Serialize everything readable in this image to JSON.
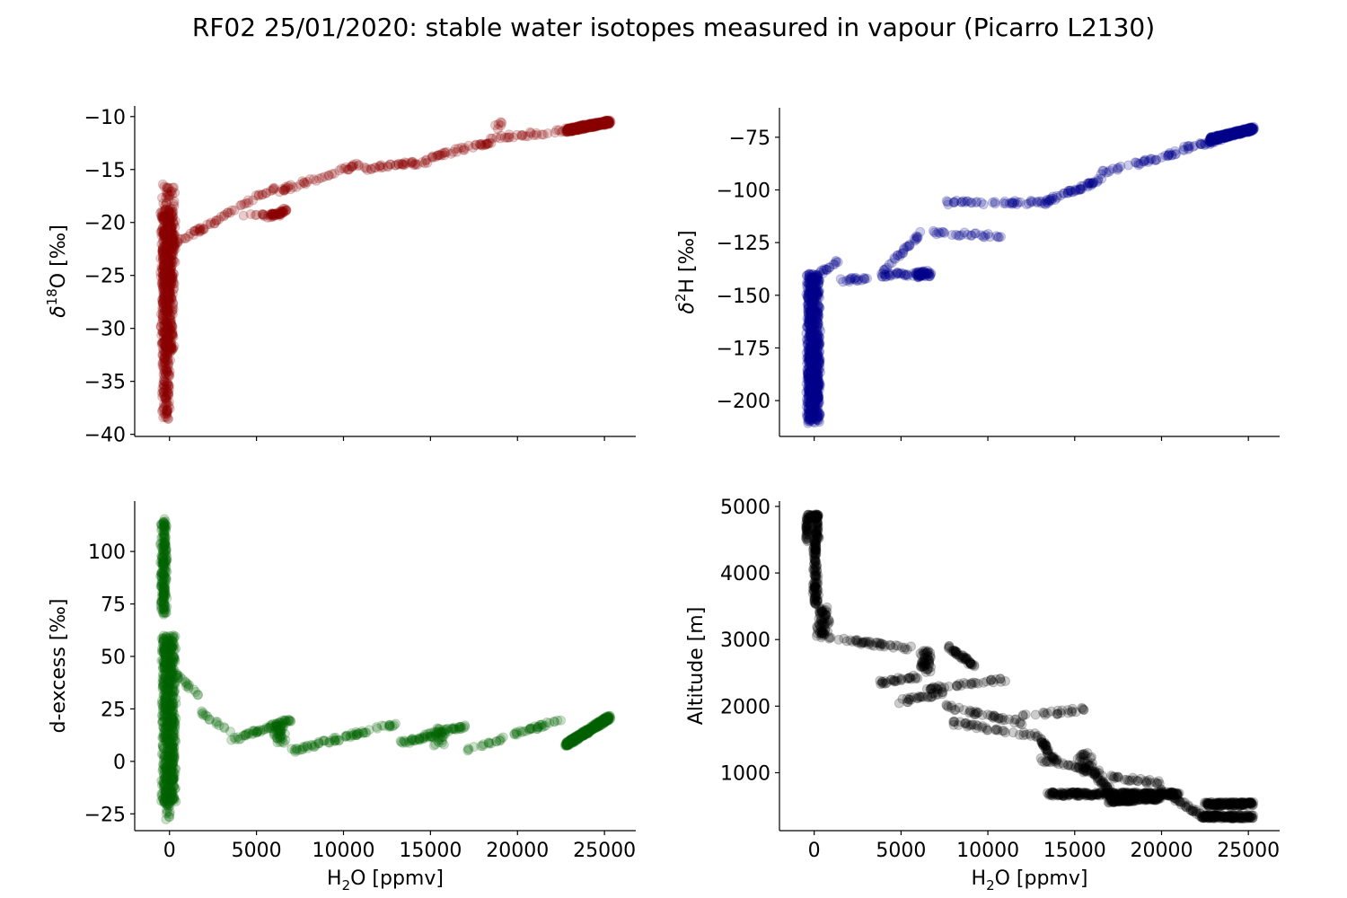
{
  "figure_title": "RF02 25/01/2020: stable water isotopes measured in vapour (Picarro L2130)",
  "chart_data": [
    {
      "id": "d18o",
      "type": "scatter",
      "title": "",
      "xlabel": "H2O [ppmv]",
      "ylabel": "δ18O [‰]",
      "ylabel_parts": {
        "pre": "δ",
        "sup": "18",
        "post": "O [‰]"
      },
      "xlim": [
        -2000,
        26800
      ],
      "ylim": [
        -40.2,
        -9.0
      ],
      "xticks": [
        0,
        5000,
        10000,
        15000,
        20000,
        25000
      ],
      "show_xticklabels": false,
      "yticks": [
        -40,
        -35,
        -30,
        -25,
        -20,
        -15,
        -10
      ],
      "ytick_labels": [
        "−40",
        "−35",
        "−30",
        "−25",
        "−20",
        "−15",
        "−10"
      ],
      "color": "#8b0000",
      "alpha": 0.2,
      "segments": [
        {
          "x": [
            -400,
            0
          ],
          "y": [
            -38.5,
            -32
          ],
          "n": 120
        },
        {
          "x": [
            -450,
            200
          ],
          "y": [
            -32,
            -19
          ],
          "n": 500
        },
        {
          "x": [
            -400,
            300
          ],
          "y": [
            -26,
            -16.5
          ],
          "n": 150
        },
        {
          "x": [
            200,
            2000
          ],
          "y": [
            -22,
            -20.5
          ],
          "n": 25
        },
        {
          "x": [
            2000,
            6200
          ],
          "y": [
            -20.5,
            -16.5
          ],
          "n": 35
        },
        {
          "x": [
            5600,
            6700
          ],
          "y": [
            -19.5,
            -18.8
          ],
          "n": 40
        },
        {
          "x": [
            4200,
            6300
          ],
          "y": [
            -19.3,
            -19.3
          ],
          "n": 15
        },
        {
          "x": [
            6300,
            11000
          ],
          "y": [
            -17,
            -14.5
          ],
          "n": 45
        },
        {
          "x": [
            11000,
            15000
          ],
          "y": [
            -15,
            -14.2
          ],
          "n": 40
        },
        {
          "x": [
            15000,
            18500
          ],
          "y": [
            -13.8,
            -12.4
          ],
          "n": 40
        },
        {
          "x": [
            18500,
            23000
          ],
          "y": [
            -12,
            -11.3
          ],
          "n": 30
        },
        {
          "x": [
            18700,
            19100
          ],
          "y": [
            -11,
            -10.6
          ],
          "n": 6
        },
        {
          "x": [
            22800,
            25300
          ],
          "y": [
            -11.3,
            -10.5
          ],
          "n": 400
        }
      ]
    },
    {
      "id": "d2h",
      "type": "scatter",
      "xlabel": "H2O [ppmv]",
      "ylabel": "δ2H [‰]",
      "ylabel_parts": {
        "pre": "δ",
        "sup": "2",
        "post": "H [‰]"
      },
      "xlim": [
        -2000,
        26800
      ],
      "ylim": [
        -217,
        -61
      ],
      "xticks": [
        0,
        5000,
        10000,
        15000,
        20000,
        25000
      ],
      "show_xticklabels": false,
      "yticks": [
        -200,
        -175,
        -150,
        -125,
        -100,
        -75
      ],
      "ytick_labels": [
        "−200",
        "−175",
        "−150",
        "−125",
        "−100",
        "−75"
      ],
      "color": "#00008b",
      "alpha": 0.2,
      "segments": [
        {
          "x": [
            -400,
            300
          ],
          "y": [
            -210,
            -140
          ],
          "n": 700
        },
        {
          "x": [
            -300,
            200
          ],
          "y": [
            -205,
            -185
          ],
          "n": 100
        },
        {
          "x": [
            300,
            1500
          ],
          "y": [
            -140,
            -133
          ],
          "n": 15
        },
        {
          "x": [
            1500,
            4200
          ],
          "y": [
            -143,
            -141
          ],
          "n": 25
        },
        {
          "x": [
            4200,
            6700
          ],
          "y": [
            -140,
            -140
          ],
          "n": 30
        },
        {
          "x": [
            5800,
            6700
          ],
          "y": [
            -141,
            -139
          ],
          "n": 40
        },
        {
          "x": [
            3800,
            6000
          ],
          "y": [
            -140,
            -122
          ],
          "n": 30
        },
        {
          "x": [
            6000,
            11000
          ],
          "y": [
            -120,
            -122
          ],
          "n": 30
        },
        {
          "x": [
            7500,
            13500
          ],
          "y": [
            -106,
            -106
          ],
          "n": 50
        },
        {
          "x": [
            13500,
            16500
          ],
          "y": [
            -105,
            -95
          ],
          "n": 50
        },
        {
          "x": [
            16500,
            21000
          ],
          "y": [
            -92,
            -82
          ],
          "n": 40
        },
        {
          "x": [
            21000,
            23500
          ],
          "y": [
            -81,
            -76
          ],
          "n": 30
        },
        {
          "x": [
            22800,
            25300
          ],
          "y": [
            -76,
            -71
          ],
          "n": 400
        }
      ]
    },
    {
      "id": "dexcess",
      "type": "scatter",
      "xlabel": "H2O [ppmv]",
      "ylabel": "d-excess [‰]",
      "xlim": [
        -2000,
        26800
      ],
      "ylim": [
        -33,
        124
      ],
      "xticks": [
        0,
        5000,
        10000,
        15000,
        20000,
        25000
      ],
      "xtick_labels": [
        "0",
        "5000",
        "10000",
        "15000",
        "20000",
        "25000"
      ],
      "show_xticklabels": true,
      "yticks": [
        -25,
        0,
        25,
        50,
        75,
        100
      ],
      "ytick_labels": [
        "−25",
        "0",
        "25",
        "50",
        "75",
        "100"
      ],
      "color": "#006400",
      "alpha": 0.2,
      "segments": [
        {
          "x": [
            -450,
            -200
          ],
          "y": [
            70,
            115
          ],
          "n": 200
        },
        {
          "x": [
            -400,
            300
          ],
          "y": [
            -20,
            60
          ],
          "n": 700
        },
        {
          "x": [
            -200,
            0
          ],
          "y": [
            -27,
            -15
          ],
          "n": 15
        },
        {
          "x": [
            300,
            1700
          ],
          "y": [
            42,
            31
          ],
          "n": 20
        },
        {
          "x": [
            1700,
            3500
          ],
          "y": [
            24,
            15
          ],
          "n": 15
        },
        {
          "x": [
            3500,
            7000
          ],
          "y": [
            10,
            20
          ],
          "n": 60
        },
        {
          "x": [
            6000,
            6700
          ],
          "y": [
            9,
            18
          ],
          "n": 40
        },
        {
          "x": [
            7000,
            13000
          ],
          "y": [
            5,
            18
          ],
          "n": 70
        },
        {
          "x": [
            13000,
            17000
          ],
          "y": [
            8,
            17
          ],
          "n": 60
        },
        {
          "x": [
            15000,
            15800
          ],
          "y": [
            8,
            16
          ],
          "n": 30
        },
        {
          "x": [
            17000,
            22500
          ],
          "y": [
            5,
            20
          ],
          "n": 50
        },
        {
          "x": [
            22800,
            25300
          ],
          "y": [
            8,
            21
          ],
          "n": 400
        }
      ]
    },
    {
      "id": "altitude",
      "type": "scatter",
      "xlabel": "H2O [ppmv]",
      "ylabel": "Altitude [m]",
      "xlim": [
        -2000,
        26800
      ],
      "ylim": [
        130,
        5080
      ],
      "xticks": [
        0,
        5000,
        10000,
        15000,
        20000,
        25000
      ],
      "xtick_labels": [
        "0",
        "5000",
        "10000",
        "15000",
        "20000",
        "25000"
      ],
      "show_xticklabels": true,
      "yticks": [
        1000,
        2000,
        3000,
        4000,
        5000
      ],
      "ytick_labels": [
        "1000",
        "2000",
        "3000",
        "4000",
        "5000"
      ],
      "color": "#000000",
      "alpha": 0.2,
      "segments": [
        {
          "x": [
            -400,
            200
          ],
          "y": [
            4850,
            4850
          ],
          "n": 40
        },
        {
          "x": [
            -400,
            -400
          ],
          "y": [
            4500,
            4850
          ],
          "n": 40
        },
        {
          "x": [
            100,
            200
          ],
          "y": [
            4500,
            4850
          ],
          "n": 40
        },
        {
          "x": [
            100,
            0
          ],
          "y": [
            4500,
            4000
          ],
          "n": 60
        },
        {
          "x": [
            0,
            200
          ],
          "y": [
            4000,
            3500
          ],
          "n": 60
        },
        {
          "x": [
            200,
            800
          ],
          "y": [
            3500,
            3050
          ],
          "n": 70
        },
        {
          "x": [
            800,
            5500
          ],
          "y": [
            3020,
            2870
          ],
          "n": 45
        },
        {
          "x": [
            6100,
            6700
          ],
          "y": [
            2850,
            2520
          ],
          "n": 50
        },
        {
          "x": [
            7700,
            9200
          ],
          "y": [
            2900,
            2600
          ],
          "n": 45
        },
        {
          "x": [
            3800,
            6000
          ],
          "y": [
            2350,
            2450
          ],
          "n": 30
        },
        {
          "x": [
            6500,
            11000
          ],
          "y": [
            2250,
            2400
          ],
          "n": 40
        },
        {
          "x": [
            4500,
            7500
          ],
          "y": [
            2050,
            2200
          ],
          "n": 30
        },
        {
          "x": [
            7500,
            12000
          ],
          "y": [
            2000,
            1750
          ],
          "n": 40
        },
        {
          "x": [
            12000,
            15500
          ],
          "y": [
            1850,
            1950
          ],
          "n": 25
        },
        {
          "x": [
            8000,
            13000
          ],
          "y": [
            1750,
            1550
          ],
          "n": 40
        },
        {
          "x": [
            13000,
            14000
          ],
          "y": [
            1500,
            1150
          ],
          "n": 40
        },
        {
          "x": [
            15200,
            16000
          ],
          "y": [
            1300,
            1000
          ],
          "n": 40
        },
        {
          "x": [
            13000,
            16500
          ],
          "y": [
            1200,
            1000
          ],
          "n": 30
        },
        {
          "x": [
            16500,
            20000
          ],
          "y": [
            950,
            850
          ],
          "n": 30
        },
        {
          "x": [
            16000,
            17000
          ],
          "y": [
            1000,
            750
          ],
          "n": 30
        },
        {
          "x": [
            13500,
            21000
          ],
          "y": [
            680,
            680
          ],
          "n": 300
        },
        {
          "x": [
            17000,
            20000
          ],
          "y": [
            580,
            620
          ],
          "n": 150
        },
        {
          "x": [
            20000,
            22500
          ],
          "y": [
            750,
            320
          ],
          "n": 50
        },
        {
          "x": [
            22500,
            25300
          ],
          "y": [
            530,
            530
          ],
          "n": 150
        },
        {
          "x": [
            22500,
            25300
          ],
          "y": [
            340,
            340
          ],
          "n": 150
        }
      ]
    }
  ]
}
